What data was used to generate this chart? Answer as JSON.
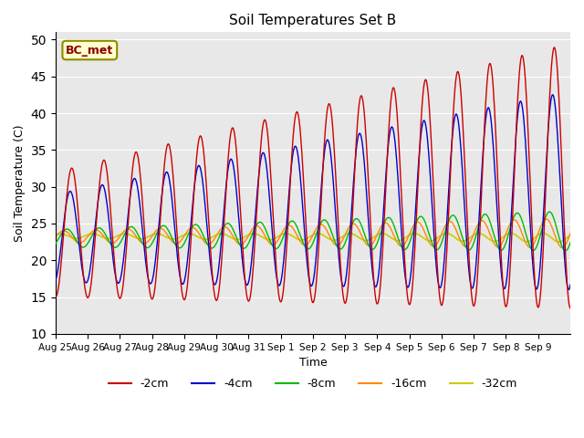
{
  "title": "Soil Temperatures Set B",
  "xlabel": "Time",
  "ylabel": "Soil Temperature (C)",
  "ylim": [
    10,
    51
  ],
  "yticks": [
    10,
    15,
    20,
    25,
    30,
    35,
    40,
    45,
    50
  ],
  "annotation": "BC_met",
  "background_color": "#e8e8e8",
  "colors": {
    "-2cm": "#cc0000",
    "-4cm": "#0000cc",
    "-8cm": "#00bb00",
    "-16cm": "#ff8800",
    "-32cm": "#cccc00"
  },
  "legend_labels": [
    "-2cm",
    "-4cm",
    "-8cm",
    "-16cm",
    "-32cm"
  ],
  "x_labels": [
    "Aug 25",
    "Aug 26",
    "Aug 27",
    "Aug 28",
    "Aug 29",
    "Aug 30",
    "Aug 31",
    "Sep 1",
    "Sep 2",
    "Sep 3",
    "Sep 4",
    "Sep 5",
    "Sep 6",
    "Sep 7",
    "Sep 8",
    "Sep 9"
  ],
  "n_days": 16,
  "points_per_day": 48
}
